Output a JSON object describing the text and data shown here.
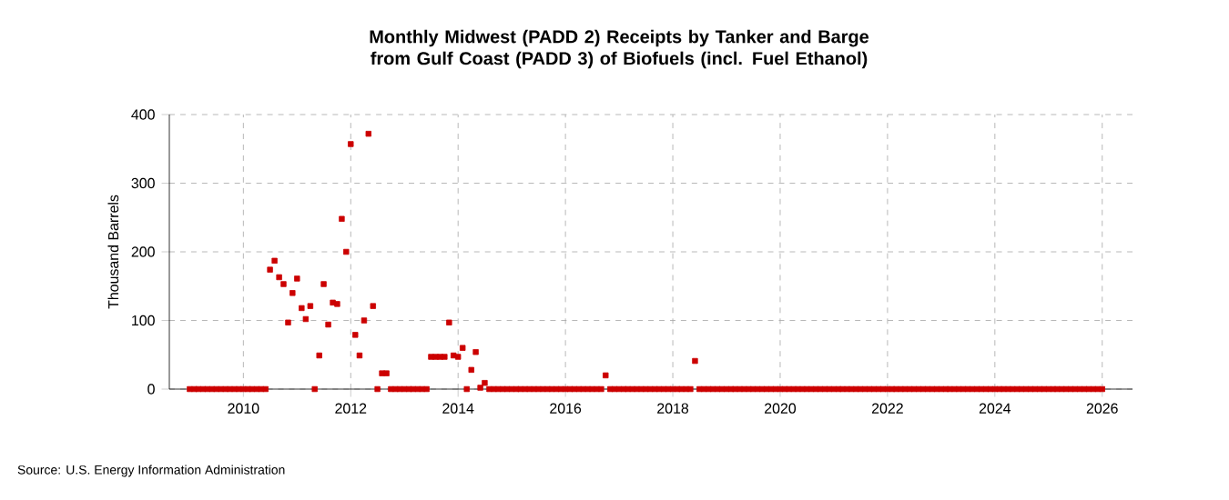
{
  "chart_data": {
    "type": "scatter",
    "title": "Monthly Midwest (PADD 2) Receipts by Tanker and Barge from Gulf Coast (PADD 3) of Biofuels (incl. Fuel Ethanol)",
    "ylabel": "Thousand Barrels",
    "annotations": [
      "Source: U.S. Energy Information Administration"
    ],
    "x": [
      "2009-01",
      "2009-02",
      "2009-03",
      "2009-04",
      "2009-05",
      "2009-06",
      "2009-07",
      "2009-08",
      "2009-09",
      "2009-10",
      "2009-11",
      "2009-12",
      "2010-01",
      "2010-02",
      "2010-03",
      "2010-04",
      "2010-05",
      "2010-06",
      "2010-07",
      "2010-08",
      "2010-09",
      "2010-10",
      "2010-11",
      "2010-12",
      "2011-01",
      "2011-02",
      "2011-03",
      "2011-04",
      "2011-05",
      "2011-06",
      "2011-07",
      "2011-08",
      "2011-09",
      "2011-10",
      "2011-11",
      "2011-12",
      "2012-01",
      "2012-02",
      "2012-03",
      "2012-04",
      "2012-05",
      "2012-06",
      "2012-07",
      "2012-08",
      "2012-09",
      "2012-10",
      "2012-11",
      "2012-12",
      "2013-01",
      "2013-02",
      "2013-03",
      "2013-04",
      "2013-05",
      "2013-06",
      "2013-07",
      "2013-08",
      "2013-09",
      "2013-10",
      "2013-11",
      "2013-12",
      "2014-01",
      "2014-02",
      "2014-03",
      "2014-04",
      "2014-05",
      "2014-06",
      "2014-07",
      "2014-08",
      "2014-09",
      "2014-10",
      "2014-11",
      "2014-12",
      "2015-01",
      "2015-02",
      "2015-03",
      "2015-04",
      "2015-05",
      "2015-06",
      "2015-07",
      "2015-08",
      "2015-09",
      "2015-10",
      "2015-11",
      "2015-12",
      "2016-01",
      "2016-02",
      "2016-03",
      "2016-04",
      "2016-05",
      "2016-06",
      "2016-07",
      "2016-08",
      "2016-09",
      "2016-10",
      "2016-11",
      "2016-12",
      "2017-01",
      "2017-02",
      "2017-03",
      "2017-04",
      "2017-05",
      "2017-06",
      "2017-07",
      "2017-08",
      "2017-09",
      "2017-10",
      "2017-11",
      "2017-12",
      "2018-01",
      "2018-02",
      "2018-03",
      "2018-04",
      "2018-05",
      "2018-06",
      "2018-07",
      "2018-08",
      "2018-09",
      "2018-10",
      "2018-11",
      "2018-12",
      "2019-01",
      "2019-02",
      "2019-03",
      "2019-04",
      "2019-05",
      "2019-06",
      "2019-07",
      "2019-08",
      "2019-09",
      "2019-10",
      "2019-11",
      "2019-12",
      "2020-01",
      "2020-02",
      "2020-03",
      "2020-04",
      "2020-05",
      "2020-06",
      "2020-07",
      "2020-08",
      "2020-09",
      "2020-10",
      "2020-11",
      "2020-12",
      "2021-01",
      "2021-02",
      "2021-03",
      "2021-04",
      "2021-05",
      "2021-06",
      "2021-07",
      "2021-08",
      "2021-09",
      "2021-10",
      "2021-11",
      "2021-12",
      "2022-01",
      "2022-02",
      "2022-03",
      "2022-04",
      "2022-05",
      "2022-06",
      "2022-07",
      "2022-08",
      "2022-09",
      "2022-10",
      "2022-11",
      "2022-12",
      "2023-01",
      "2023-02",
      "2023-03",
      "2023-04",
      "2023-05",
      "2023-06",
      "2023-07",
      "2023-08",
      "2023-09",
      "2023-10",
      "2023-11",
      "2023-12",
      "2024-01",
      "2024-02",
      "2024-03",
      "2024-04",
      "2024-05",
      "2024-06",
      "2024-07",
      "2024-08",
      "2024-09",
      "2024-10",
      "2024-11",
      "2024-12",
      "2025-01",
      "2025-02",
      "2025-03",
      "2025-04",
      "2025-05",
      "2025-06",
      "2025-07",
      "2025-08",
      "2025-09",
      "2025-10",
      "2025-11",
      "2025-12",
      "2026-01"
    ],
    "values": [
      0,
      0,
      0,
      0,
      0,
      0,
      0,
      0,
      0,
      0,
      0,
      0,
      0,
      0,
      0,
      0,
      0,
      0,
      174,
      187,
      163,
      153,
      97,
      140,
      161,
      118,
      102,
      121,
      0,
      49,
      153,
      94,
      126,
      124,
      248,
      200,
      357,
      79,
      49,
      100,
      372,
      121,
      0,
      23,
      23,
      0,
      0,
      0,
      0,
      0,
      0,
      0,
      0,
      0,
      47,
      47,
      47,
      47,
      97,
      49,
      47,
      60,
      0,
      28,
      54,
      2,
      9,
      0,
      0,
      0,
      0,
      0,
      0,
      0,
      0,
      0,
      0,
      0,
      0,
      0,
      0,
      0,
      0,
      0,
      0,
      0,
      0,
      0,
      0,
      0,
      0,
      0,
      0,
      20,
      0,
      0,
      0,
      0,
      0,
      0,
      0,
      0,
      0,
      0,
      0,
      0,
      0,
      0,
      0,
      0,
      0,
      0,
      0,
      41,
      0,
      0,
      0,
      0,
      0,
      0,
      0,
      0,
      0,
      0,
      0,
      0,
      0,
      0,
      0,
      0,
      0,
      0,
      0,
      0,
      0,
      0,
      0,
      0,
      0,
      0,
      0,
      0,
      0,
      0,
      0,
      0,
      0,
      0,
      0,
      0,
      0,
      0,
      0,
      0,
      0,
      0,
      0,
      0,
      0,
      0,
      0,
      0,
      0,
      0,
      0,
      0,
      0,
      0,
      0,
      0,
      0,
      0,
      0,
      0,
      0,
      0,
      0,
      0,
      0,
      0,
      0,
      0,
      0,
      0,
      0,
      0,
      0,
      0,
      0,
      0,
      0,
      0,
      0,
      0,
      0,
      0,
      0,
      0,
      0,
      0,
      0,
      0,
      0,
      0,
      0
    ],
    "color": "#cc0000",
    "marker": "square",
    "xlim": [
      "2008-08-15",
      "2026-07-26"
    ],
    "xticks": [
      "2010",
      "2012",
      "2014",
      "2016",
      "2018",
      "2020",
      "2022",
      "2024",
      "2026"
    ],
    "ylim": [
      0,
      400
    ],
    "yticks": [
      0,
      100,
      200,
      300,
      400
    ],
    "grid": true
  }
}
